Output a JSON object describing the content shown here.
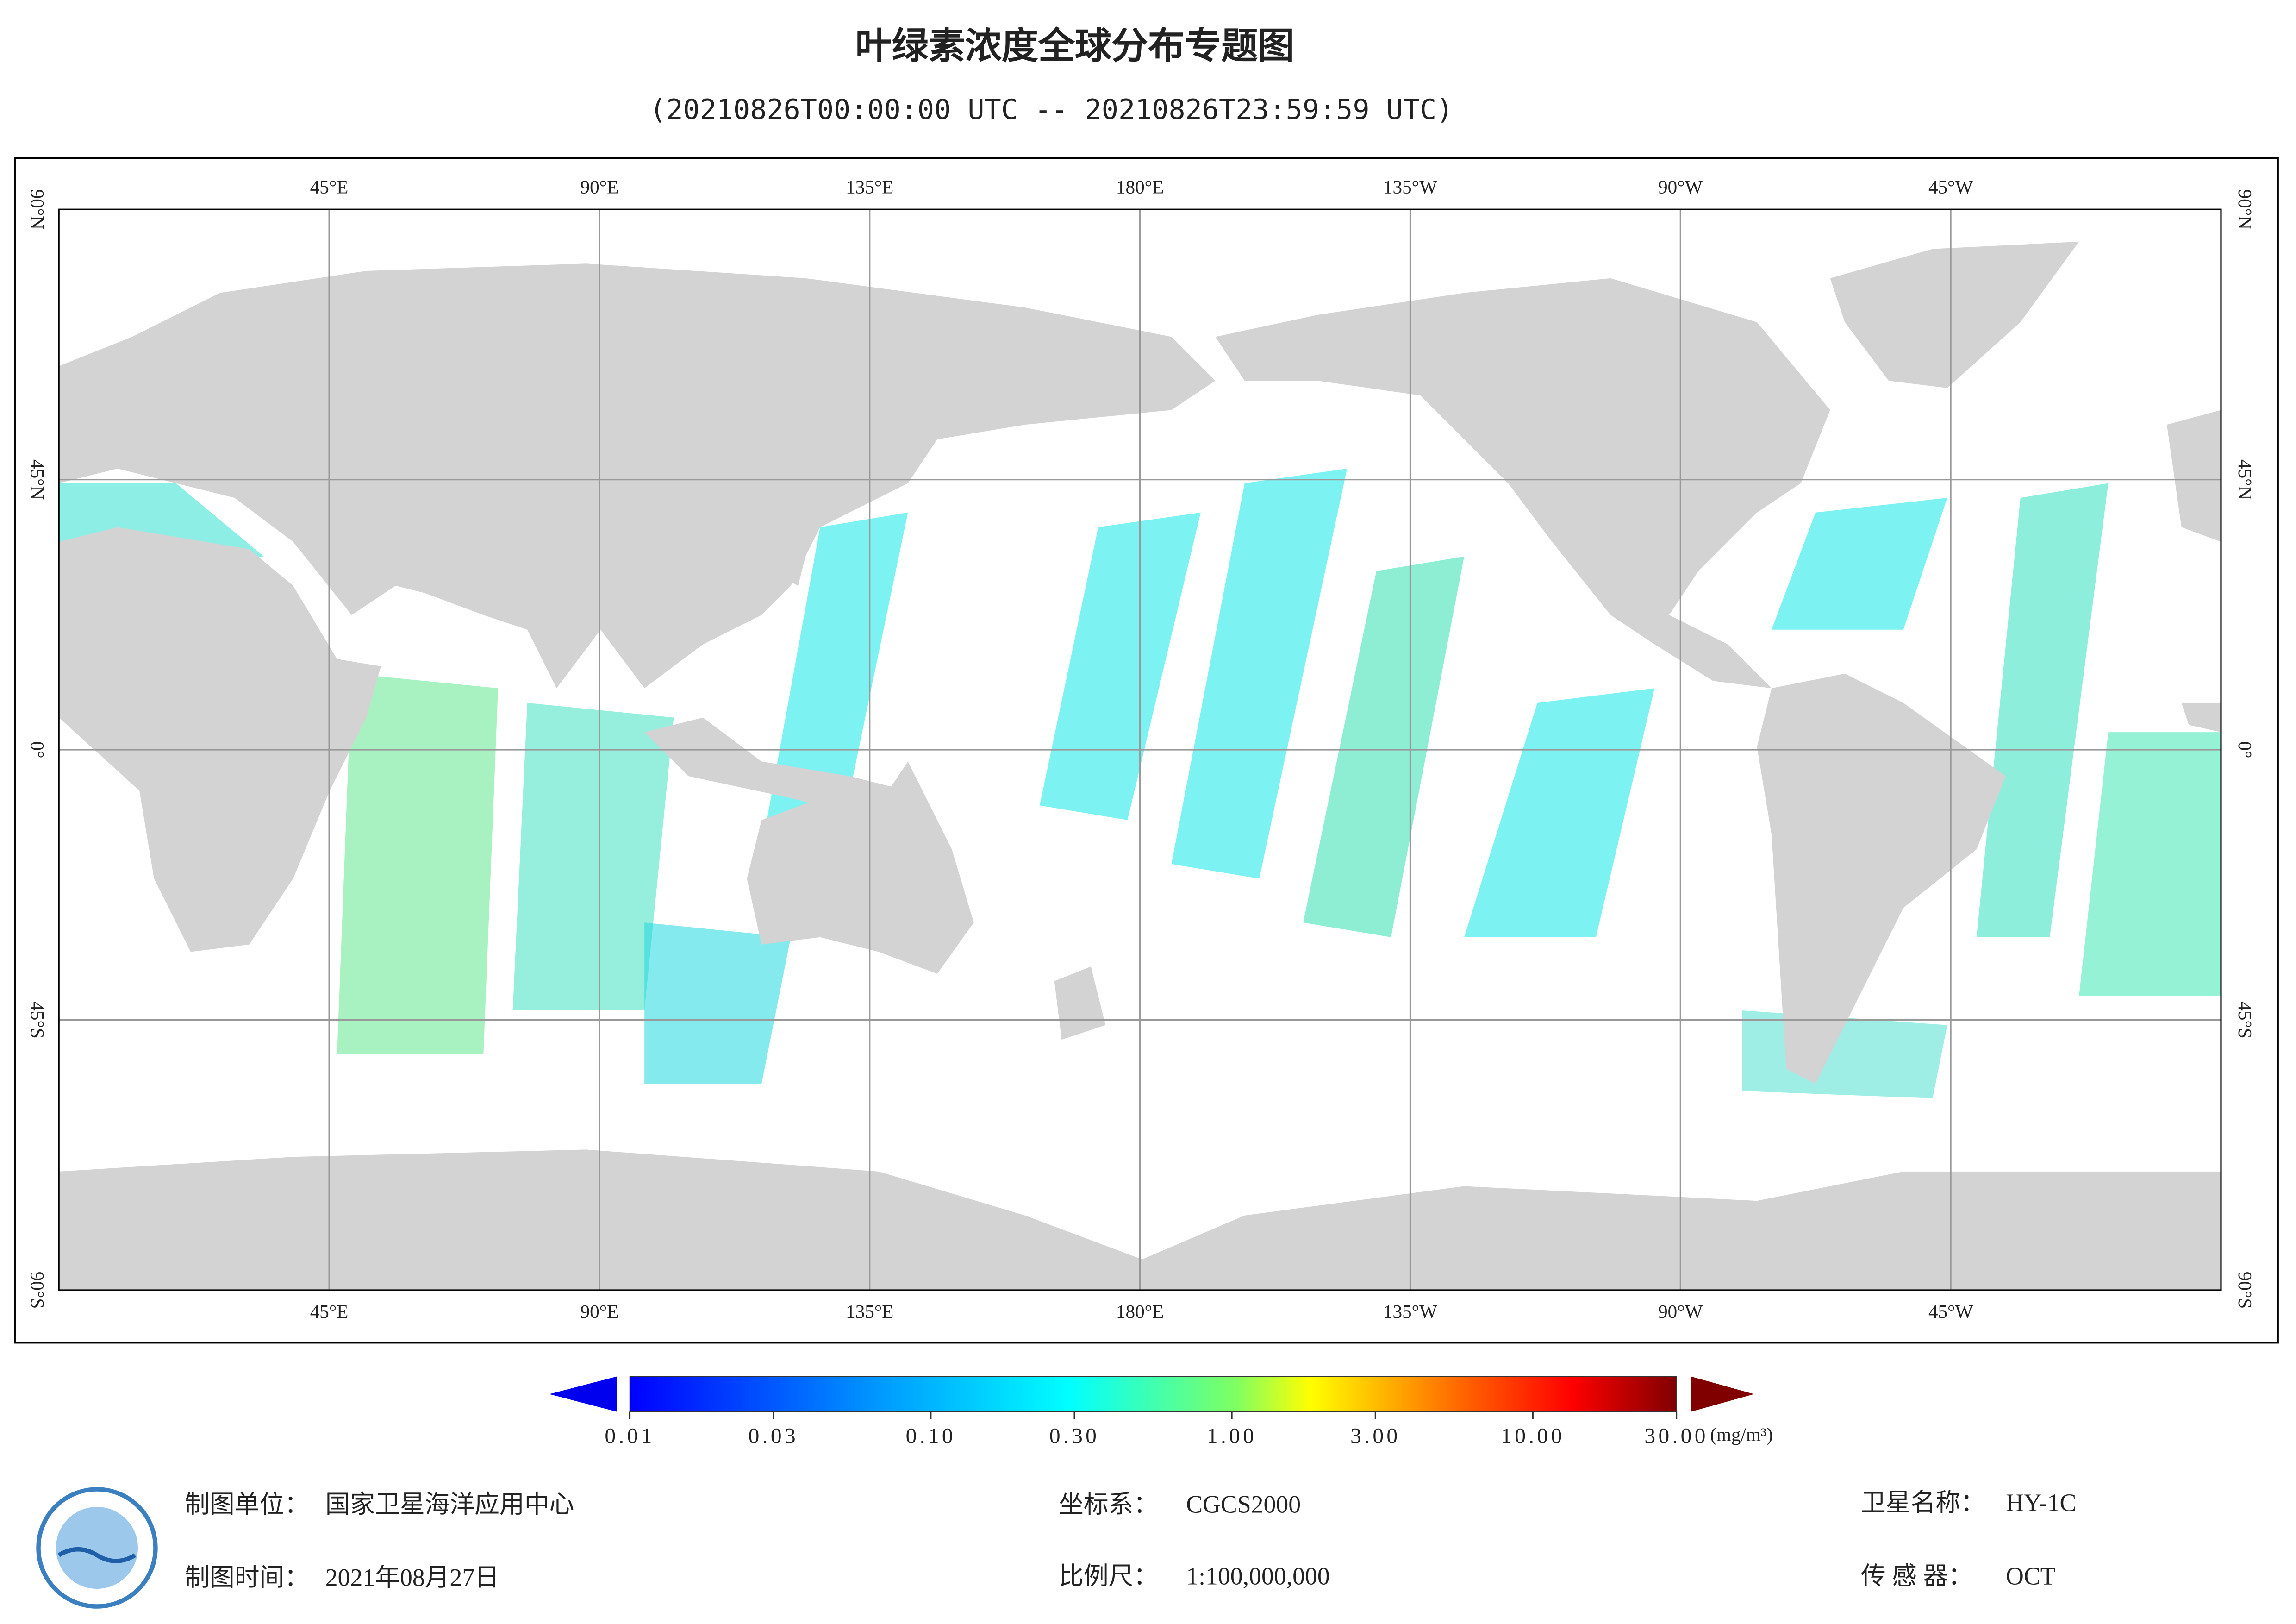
{
  "header": {
    "title": "叶绿素浓度全球分布专题图",
    "subtitle": "(20210826T00:00:00 UTC -- 20210826T23:59:59 UTC)"
  },
  "map": {
    "lonlim": [
      0,
      360
    ],
    "latlim": [
      -90,
      90
    ],
    "grid": true,
    "lonticks": [
      {
        "value": 45,
        "label": "45°E"
      },
      {
        "value": 90,
        "label": "90°E"
      },
      {
        "value": 135,
        "label": "135°E"
      },
      {
        "value": 180,
        "label": "180°E"
      },
      {
        "value": -135,
        "label": "135°W"
      },
      {
        "value": -90,
        "label": "90°W"
      },
      {
        "value": -45,
        "label": "45°W"
      }
    ],
    "latticks": [
      {
        "value": 90,
        "label": "90°N"
      },
      {
        "value": 45,
        "label": "45°N"
      },
      {
        "value": 0,
        "label": "0°"
      },
      {
        "value": -45,
        "label": "45°S"
      },
      {
        "value": -90,
        "label": "90°S"
      }
    ]
  },
  "colorbar": {
    "range": [
      0.01,
      30
    ],
    "log": true,
    "unit": "(mg/m³)",
    "ticks": [
      0.01,
      0.03,
      {
        "value": 0.1,
        "label": "0.10"
      },
      {
        "value": 0.3,
        "label": "0.30"
      },
      {
        "value": 1,
        "label": "1.00"
      },
      {
        "value": 3,
        "label": "3.00"
      },
      {
        "value": 10,
        "label": "10.00"
      },
      {
        "value": 30,
        "label": "30.00"
      }
    ]
  },
  "footer": {
    "producer_label": "制图单位：",
    "producer": "国家卫星海洋应用中心",
    "date_label": "制图时间：",
    "date": "2021年08月27日",
    "crs_label": "坐标系：",
    "crs": "CGCS2000",
    "scale_label": "比例尺：",
    "scale": "1:100,000,000",
    "satellite_label": "卫星名称：",
    "satellite": "HY-1C",
    "sensor_label": "传 感 器：",
    "sensor": "OCT"
  }
}
